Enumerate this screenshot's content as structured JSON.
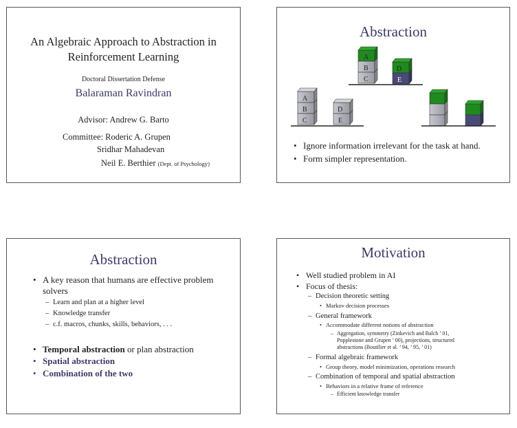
{
  "slide1": {
    "title_line1": "An Algebraic Approach to Abstraction in",
    "title_line2": "Reinforcement Learning",
    "subtitle": "Doctoral Dissertation Defense",
    "author": "Balaraman Ravindran",
    "advisor": "Advisor: Andrew G. Barto",
    "committee_line1": "Committee: Roderic A. Grupen",
    "committee_line2": "Sridhar Mahadevan",
    "committee_line3": "Neil E. Berthier",
    "committee_note": "(Dept. of Psychology)"
  },
  "slide2": {
    "title": "Abstraction",
    "bullets": [
      "Ignore information irrelevant for the task at hand.",
      "Form simpler representation."
    ],
    "block_labels": {
      "a": "A",
      "b": "B",
      "c": "C",
      "d": "D",
      "e": "E"
    },
    "colors": {
      "green": "#1f8a1f",
      "gray": "#a9a9b2",
      "navy": "#4a4a7a"
    }
  },
  "slide3": {
    "title": "Abstraction",
    "bullet1_line1": "A key reason that humans are effective problem",
    "bullet1_line2": "solvers",
    "sub_bullets": [
      "Learn and plan at a higher level",
      "Knowledge transfer",
      "c.f. macros, chunks, skills, behaviors, . . ."
    ],
    "temporal_bold": "Temporal abstraction",
    "temporal_rest": " or plan abstraction",
    "spatial": "Spatial abstraction",
    "combination": "Combination of the two"
  },
  "slide4": {
    "title": "Motivation",
    "b1": "Well studied problem in AI",
    "b2": "Focus of thesis:",
    "s1": "Decision theoretic setting",
    "s1a": "Markov decision processes",
    "s2": "General framework",
    "s2a": "Accommodate different notions of abstraction",
    "s2a1_l1": "Aggregation, symmetry (Zinkevich and Balch ’ 01,",
    "s2a1_l2": "Popplestone and Grupen ’ 00), projections, structured",
    "s2a1_l3": "abstractions (Boutilier et al. ’ 94, ’ 95, ’ 01)",
    "s3": "Formal algebraic framework",
    "s3a": "Group theory, model minimization, operations research",
    "s4": "Combination of temporal and spatial abstraction",
    "s4a": "Behaviors in a relative frame of reference",
    "s4a1": "Efficient knowledge transfer"
  }
}
